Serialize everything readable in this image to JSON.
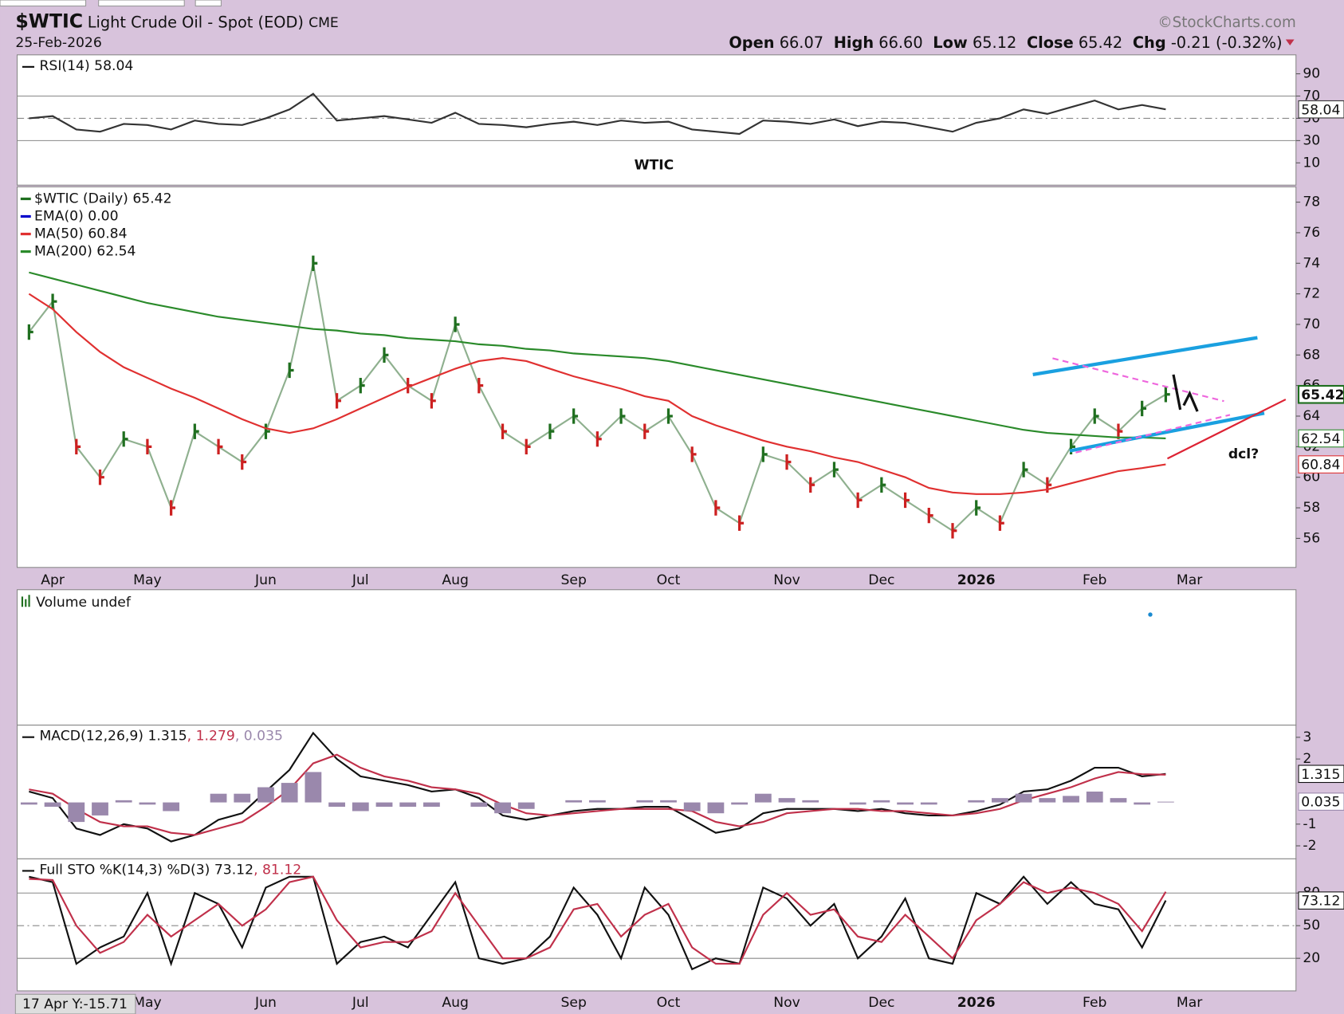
{
  "header": {
    "symbol": "$WTIC",
    "name": "Light Crude Oil - Spot (EOD)",
    "exchange": "CME",
    "watermark": "©StockCharts.com",
    "date": "25-Feb-2026",
    "open_label": "Open",
    "open": "66.07",
    "high_label": "High",
    "high": "66.60",
    "low_label": "Low",
    "low": "65.12",
    "close_label": "Close",
    "close": "65.42",
    "chg_label": "Chg",
    "chg": "-0.21 (-0.32%)"
  },
  "annotations": {
    "title_note": "WTIC",
    "cycle_note": "dcl?"
  },
  "cursor_readout": "17 Apr Y:-15.71",
  "chart_data": [
    {
      "type": "line",
      "legend": "inline",
      "ylim": [
        -10,
        107
      ],
      "yticks": [
        10,
        30,
        50,
        70,
        90
      ],
      "levels": [
        30,
        50,
        70
      ],
      "series": [
        {
          "name": "RSI(14) 58.04",
          "color": "#333333",
          "value_label": "58.04",
          "values": [
            50,
            52,
            40,
            38,
            45,
            44,
            40,
            48,
            45,
            44,
            50,
            58,
            72,
            48,
            50,
            52,
            49,
            46,
            55,
            45,
            44,
            42,
            45,
            47,
            44,
            48,
            46,
            47,
            40,
            38,
            36,
            48,
            47,
            45,
            49,
            43,
            47,
            46,
            42,
            38,
            46,
            50,
            58,
            54,
            60,
            66,
            58,
            62,
            58.04,
            null,
            null,
            null,
            null,
            null
          ]
        }
      ]
    },
    {
      "type": "line",
      "legend": "stacked",
      "ylim": [
        54.1,
        79
      ],
      "yticks": [
        56,
        58,
        60,
        62,
        64,
        66,
        68,
        70,
        72,
        74,
        76,
        78
      ],
      "categories": [
        null,
        "Apr",
        null,
        null,
        null,
        "May",
        null,
        null,
        null,
        null,
        "Jun",
        null,
        null,
        null,
        "Jul",
        null,
        null,
        null,
        "Aug",
        null,
        null,
        null,
        null,
        "Sep",
        null,
        null,
        null,
        "Oct",
        null,
        null,
        null,
        null,
        "Nov",
        null,
        null,
        null,
        "Dec",
        null,
        null,
        null,
        "2026",
        null,
        null,
        null,
        null,
        "Feb",
        null,
        null,
        null,
        "Mar",
        null,
        null,
        null,
        null
      ],
      "series": [
        {
          "name": "$WTIC (Daily) 65.42",
          "color": "#1f6f1f",
          "style": "ohlc",
          "value_label": "65.42",
          "values": [
            69.5,
            71.5,
            62,
            60,
            62.5,
            62,
            58,
            63,
            62,
            61,
            63,
            67,
            74,
            65,
            66,
            68,
            66,
            65,
            70,
            66,
            63,
            62,
            63,
            64,
            62.5,
            64,
            63,
            64,
            61.5,
            58,
            57,
            61.5,
            61,
            59.5,
            60.5,
            58.5,
            59.5,
            58.5,
            57.5,
            56.5,
            58,
            57,
            60.5,
            59.5,
            62,
            64,
            63,
            64.5,
            65.42,
            null,
            null,
            null,
            null,
            null
          ]
        },
        {
          "name": "EMA(0) 0.00",
          "color": "#0000cc",
          "values": [
            null,
            null,
            null,
            null,
            null,
            null,
            null,
            null,
            null,
            null,
            null,
            null,
            null,
            null,
            null,
            null,
            null,
            null,
            null,
            null,
            null,
            null,
            null,
            null,
            null,
            null,
            null,
            null,
            null,
            null,
            null,
            null,
            null,
            null,
            null,
            null,
            null,
            null,
            null,
            null,
            null,
            null,
            null,
            null,
            null,
            null,
            null,
            null,
            null,
            null,
            null,
            null,
            null,
            null
          ]
        },
        {
          "name": "MA(50) 60.84",
          "color": "#e03030",
          "value_label": "60.84",
          "values": [
            72,
            71,
            69.5,
            68.2,
            67.2,
            66.5,
            65.8,
            65.2,
            64.5,
            63.8,
            63.2,
            62.9,
            63.2,
            63.8,
            64.5,
            65.2,
            65.9,
            66.5,
            67.1,
            67.6,
            67.8,
            67.6,
            67.1,
            66.6,
            66.2,
            65.8,
            65.3,
            65.0,
            64.0,
            63.4,
            62.9,
            62.4,
            62.0,
            61.7,
            61.3,
            61.0,
            60.5,
            60.0,
            59.3,
            59.0,
            58.9,
            58.9,
            59.0,
            59.2,
            59.6,
            60.0,
            60.4,
            60.6,
            60.84,
            null,
            null,
            null,
            null,
            null
          ]
        },
        {
          "name": "MA(200) 62.54",
          "color": "#2a8a2a",
          "value_label": "62.54",
          "values": [
            73.4,
            73.0,
            72.6,
            72.2,
            71.8,
            71.4,
            71.1,
            70.8,
            70.5,
            70.3,
            70.1,
            69.9,
            69.7,
            69.6,
            69.4,
            69.3,
            69.1,
            69.0,
            68.9,
            68.7,
            68.6,
            68.4,
            68.3,
            68.1,
            68.0,
            67.9,
            67.8,
            67.6,
            67.3,
            67.0,
            66.7,
            66.4,
            66.1,
            65.8,
            65.5,
            65.2,
            64.9,
            64.6,
            64.3,
            64.0,
            63.7,
            63.4,
            63.1,
            62.9,
            62.8,
            62.7,
            62.6,
            62.6,
            62.54,
            null,
            null,
            null,
            null,
            null
          ]
        }
      ]
    },
    {
      "type": "bar",
      "title": "Volume undef"
    },
    {
      "type": "line",
      "legend": "inline",
      "ylim": [
        -2.6,
        3.56
      ],
      "yticks": [
        -2,
        -1,
        2,
        3
      ],
      "series": [
        {
          "name": "MACD(12,26,9) 1.315",
          "color": "#111111",
          "value_label": "1.315",
          "values": [
            0.5,
            0.2,
            -1.2,
            -1.5,
            -1.0,
            -1.2,
            -1.8,
            -1.5,
            -0.8,
            -0.5,
            0.5,
            1.5,
            3.2,
            2.0,
            1.2,
            1.0,
            0.8,
            0.5,
            0.6,
            0.2,
            -0.6,
            -0.8,
            -0.6,
            -0.4,
            -0.3,
            -0.3,
            -0.2,
            -0.2,
            -0.8,
            -1.4,
            -1.2,
            -0.5,
            -0.3,
            -0.3,
            -0.3,
            -0.4,
            -0.3,
            -0.5,
            -0.6,
            -0.6,
            -0.4,
            -0.1,
            0.5,
            0.6,
            1.0,
            1.6,
            1.6,
            1.2,
            1.315,
            null,
            null,
            null,
            null,
            null
          ]
        },
        {
          "name": ", 1.279",
          "color": "#c0304a",
          "values": [
            0.6,
            0.4,
            -0.3,
            -0.9,
            -1.1,
            -1.1,
            -1.4,
            -1.5,
            -1.2,
            -0.9,
            -0.2,
            0.6,
            1.8,
            2.2,
            1.6,
            1.2,
            1.0,
            0.7,
            0.6,
            0.4,
            -0.1,
            -0.5,
            -0.6,
            -0.5,
            -0.4,
            -0.3,
            -0.3,
            -0.3,
            -0.4,
            -0.9,
            -1.1,
            -0.9,
            -0.5,
            -0.4,
            -0.3,
            -0.3,
            -0.4,
            -0.4,
            -0.5,
            -0.6,
            -0.5,
            -0.3,
            0.1,
            0.4,
            0.7,
            1.1,
            1.4,
            1.3,
            1.279,
            null,
            null,
            null,
            null,
            null
          ]
        },
        {
          "name": ", 0.035",
          "color": "#9a88ac",
          "style": "histogram",
          "value_label": "0.035",
          "values": [
            -0.1,
            -0.2,
            -0.9,
            -0.6,
            0.1,
            -0.1,
            -0.4,
            0,
            0.4,
            0.4,
            0.7,
            0.9,
            1.4,
            -0.2,
            -0.4,
            -0.2,
            -0.2,
            -0.2,
            0,
            -0.2,
            -0.5,
            -0.3,
            0,
            0.1,
            0.1,
            0,
            0.1,
            0.1,
            -0.4,
            -0.5,
            -0.1,
            0.4,
            0.2,
            0.1,
            0,
            -0.1,
            0.1,
            -0.1,
            -0.1,
            0,
            0.1,
            0.2,
            0.4,
            0.2,
            0.3,
            0.5,
            0.2,
            -0.1,
            0.035,
            null,
            null,
            null,
            null,
            null
          ]
        }
      ]
    },
    {
      "type": "line",
      "legend": "inline",
      "ylim": [
        -9.9,
        111.4
      ],
      "yticks": [
        20,
        50,
        80
      ],
      "levels": [
        20,
        50,
        80
      ],
      "series": [
        {
          "name": "Full STO %K(14,3) %D(3) 73.12",
          "color": "#111111",
          "value_label": "73.12",
          "values": [
            95,
            90,
            15,
            30,
            40,
            80,
            15,
            80,
            70,
            30,
            85,
            95,
            95,
            15,
            35,
            40,
            30,
            60,
            90,
            20,
            15,
            20,
            40,
            85,
            60,
            20,
            85,
            60,
            10,
            20,
            15,
            85,
            75,
            50,
            70,
            20,
            40,
            75,
            20,
            15,
            80,
            70,
            95,
            70,
            90,
            70,
            65,
            30,
            73.12,
            null,
            null,
            null,
            null,
            null
          ]
        },
        {
          "name": ", 81.12",
          "color": "#c0304a",
          "values": [
            93,
            92,
            50,
            25,
            35,
            60,
            40,
            55,
            70,
            50,
            65,
            90,
            95,
            55,
            30,
            35,
            35,
            45,
            80,
            50,
            20,
            20,
            30,
            65,
            70,
            40,
            60,
            70,
            30,
            15,
            15,
            60,
            80,
            60,
            65,
            40,
            35,
            60,
            40,
            20,
            55,
            70,
            90,
            80,
            85,
            80,
            70,
            45,
            81.12,
            null,
            null,
            null,
            null,
            null
          ]
        }
      ]
    }
  ]
}
